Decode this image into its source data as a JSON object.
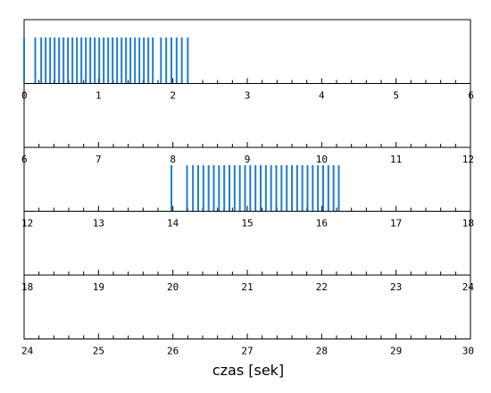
{
  "chart_data": {
    "type": "event-raster",
    "xlabel": "czas [sek]",
    "row_duration": 6,
    "rows": [
      {
        "xlim": [
          0,
          6
        ],
        "tick_labels": [
          "0",
          "1",
          "2",
          "3",
          "4",
          "5",
          "6"
        ]
      },
      {
        "xlim": [
          6,
          12
        ],
        "tick_labels": [
          "6",
          "7",
          "8",
          "9",
          "10",
          "11",
          "12"
        ]
      },
      {
        "xlim": [
          12,
          18
        ],
        "tick_labels": [
          "12",
          "13",
          "14",
          "15",
          "16",
          "17",
          "18"
        ]
      },
      {
        "xlim": [
          18,
          24
        ],
        "tick_labels": [
          "18",
          "19",
          "20",
          "21",
          "22",
          "23",
          "24"
        ]
      },
      {
        "xlim": [
          24,
          30
        ],
        "tick_labels": [
          "24",
          "25",
          "26",
          "27",
          "28",
          "29",
          "30"
        ]
      }
    ],
    "minor_tick_step": 0.2,
    "events": [
      0.0,
      0.15,
      0.23,
      0.29,
      0.35,
      0.41,
      0.47,
      0.53,
      0.59,
      0.65,
      0.71,
      0.77,
      0.83,
      0.89,
      0.95,
      1.01,
      1.07,
      1.13,
      1.19,
      1.25,
      1.31,
      1.37,
      1.43,
      1.49,
      1.55,
      1.61,
      1.67,
      1.73,
      1.84,
      1.91,
      1.98,
      2.05,
      2.12,
      2.2,
      13.98,
      14.19,
      14.27,
      14.34,
      14.41,
      14.48,
      14.55,
      14.62,
      14.69,
      14.76,
      14.83,
      14.9,
      14.97,
      15.04,
      15.11,
      15.18,
      15.25,
      15.32,
      15.39,
      15.46,
      15.53,
      15.6,
      15.67,
      15.74,
      15.81,
      15.88,
      15.95,
      16.02,
      16.09,
      16.16,
      16.23
    ],
    "colors": {
      "event": "#1f7bd0",
      "axis": "#000000"
    }
  }
}
